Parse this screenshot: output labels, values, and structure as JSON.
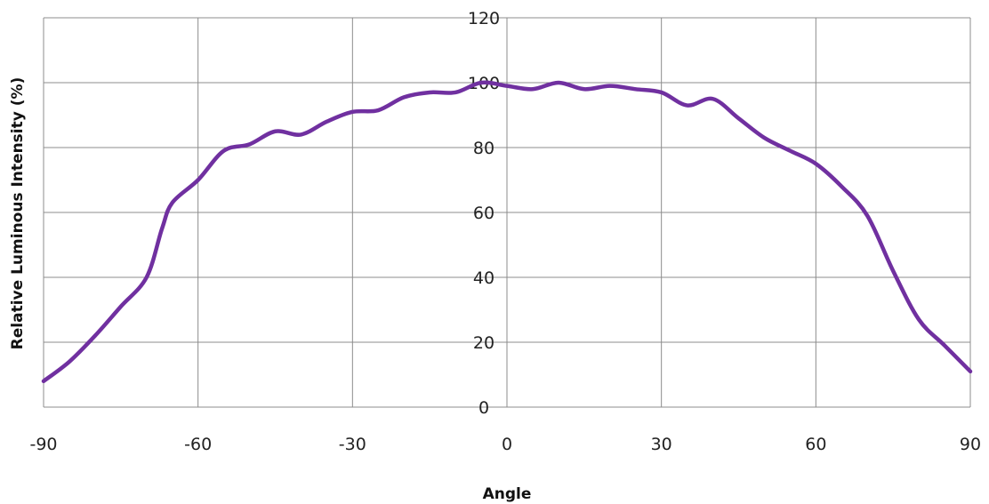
{
  "chart_data": {
    "type": "line",
    "title": "",
    "xlabel": "Angle",
    "ylabel": "Relative Luminous Intensity (%)",
    "xlim": [
      -90,
      90
    ],
    "ylim": [
      0,
      120
    ],
    "x_ticks": [
      -90,
      -60,
      -30,
      0,
      30,
      60,
      90
    ],
    "y_ticks": [
      0,
      20,
      40,
      60,
      80,
      100,
      120
    ],
    "grid": true,
    "legend": "none",
    "series": [
      {
        "color": "#7030A0",
        "x": [
          -90,
          -85,
          -80,
          -75,
          -70,
          -67,
          -65,
          -60,
          -55,
          -50,
          -45,
          -40,
          -35,
          -30,
          -25,
          -20,
          -15,
          -10,
          -5,
          0,
          5,
          10,
          15,
          20,
          25,
          30,
          35,
          40,
          45,
          50,
          55,
          60,
          65,
          70,
          75,
          80,
          85,
          90
        ],
        "y": [
          8,
          14,
          22,
          31,
          40,
          55,
          63,
          70,
          79,
          81,
          85,
          84,
          88,
          91,
          91.5,
          95.5,
          97,
          97,
          100,
          99,
          98,
          100,
          98,
          99,
          98,
          97,
          93,
          95,
          89,
          83,
          79,
          75,
          68,
          59,
          42,
          27,
          19,
          11
        ]
      }
    ]
  }
}
